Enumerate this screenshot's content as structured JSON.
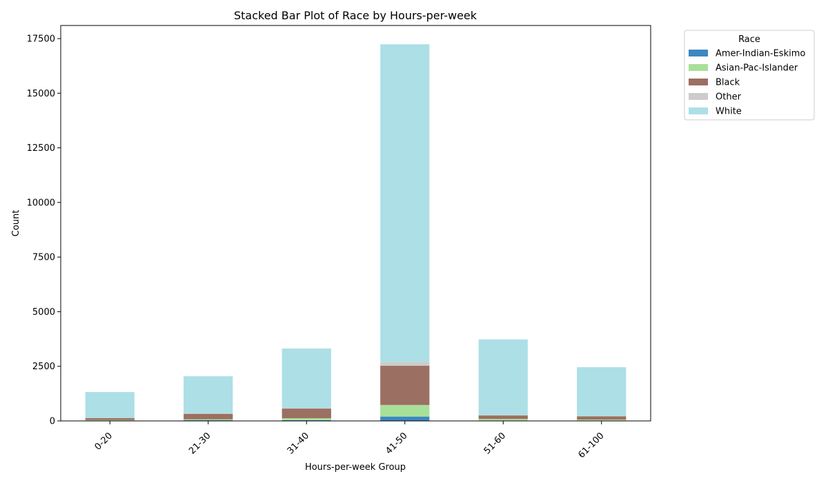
{
  "chart_data": {
    "type": "bar",
    "stacked": true,
    "title": "Stacked Bar Plot of Race by Hours-per-week",
    "xlabel": "Hours-per-week Group",
    "ylabel": "Count",
    "categories": [
      "0-20",
      "21-30",
      "31-40",
      "41-50",
      "51-60",
      "61-100"
    ],
    "ylim": [
      0,
      18100
    ],
    "yticks": [
      0,
      2500,
      5000,
      7500,
      10000,
      12500,
      15000,
      17500
    ],
    "grid": false,
    "legend": {
      "title": "Race",
      "placement": "outside-right-top"
    },
    "series": [
      {
        "name": "Amer-Indian-Eskimo",
        "color": "#3d88c0",
        "values": [
          12,
          30,
          35,
          200,
          20,
          14
        ]
      },
      {
        "name": "Asian-Pac-Islander",
        "color": "#a8e09a",
        "values": [
          30,
          45,
          90,
          530,
          70,
          50
        ]
      },
      {
        "name": "Black",
        "color": "#9c6f63",
        "values": [
          90,
          250,
          440,
          1800,
          160,
          150
        ]
      },
      {
        "name": "Other",
        "color": "#cccccc",
        "values": [
          10,
          20,
          30,
          170,
          20,
          15
        ]
      },
      {
        "name": "White",
        "color": "#addfe6",
        "values": [
          1180,
          1700,
          2720,
          14540,
          3460,
          2230
        ]
      }
    ]
  }
}
